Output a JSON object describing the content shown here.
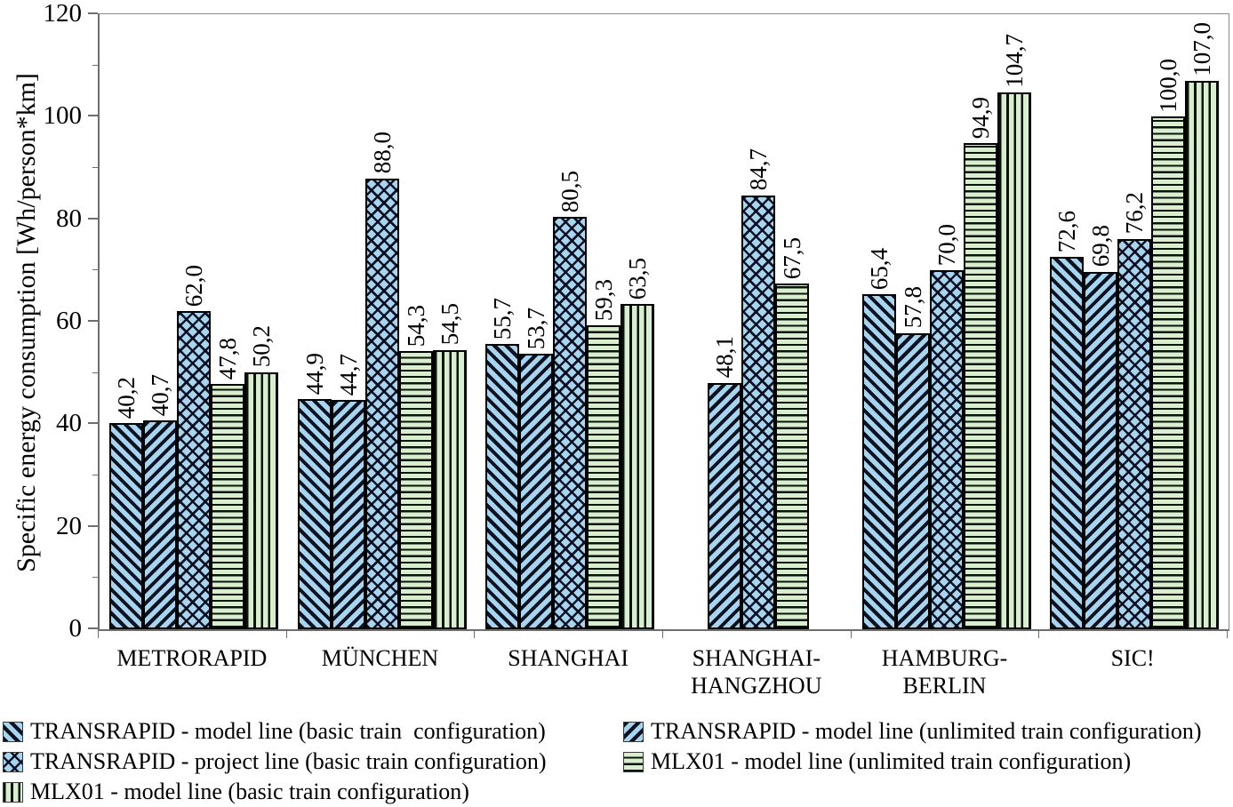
{
  "chart_data": {
    "type": "bar",
    "title": "",
    "xlabel": "",
    "ylabel": "Specific energy consumption [Wh/person*km]",
    "ylim": [
      0,
      120
    ],
    "y_major_ticks": [
      0,
      20,
      40,
      60,
      80,
      100,
      120
    ],
    "y_minor_step": 10,
    "grid": false,
    "legend_position": "bottom",
    "decimal_separator": ",",
    "categories": [
      "METRORAPID",
      "MÜNCHEN",
      "SHANGHAI",
      "SHANGHAI-HANGZHOU",
      "HAMBURG-BERLIN",
      "SIC!"
    ],
    "category_label_lines": [
      [
        "METRORAPID"
      ],
      [
        "MÜNCHEN"
      ],
      [
        "SHANGHAI"
      ],
      [
        "SHANGHAI-",
        "HANGZHOU"
      ],
      [
        "HAMBURG-",
        "BERLIN"
      ],
      [
        "SIC!"
      ]
    ],
    "series": [
      {
        "name": "TRANSRAPID - model line (basic train  configuration)",
        "pattern": "diagonal-down-hatch",
        "fill_color": "#a8d4f0",
        "hatch_color": "#000000",
        "values": [
          40.2,
          44.9,
          55.7,
          null,
          65.4,
          72.6
        ],
        "labels": [
          "40,2",
          "44,9",
          "55,7",
          null,
          "65,4",
          "72,6"
        ]
      },
      {
        "name": "TRANSRAPID - model line (unlimited train configuration)",
        "pattern": "diagonal-up-hatch",
        "fill_color": "#a8d4f0",
        "hatch_color": "#000000",
        "values": [
          40.7,
          44.7,
          53.7,
          48.1,
          57.8,
          69.8
        ],
        "labels": [
          "40,7",
          "44,7",
          "53,7",
          "48,1",
          "57,8",
          "69,8"
        ]
      },
      {
        "name": "TRANSRAPID - project line (basic train configuration)",
        "pattern": "crosshatch",
        "fill_color": "#a8d4f0",
        "hatch_color": "#000000",
        "values": [
          62.0,
          88.0,
          80.5,
          84.7,
          70.0,
          76.2
        ],
        "labels": [
          "62,0",
          "88,0",
          "80,5",
          "84,7",
          "70,0",
          "76,2"
        ]
      },
      {
        "name": "MLX01 - model line (unlimited train configuration)",
        "pattern": "horizontal-lines",
        "fill_color": "#d8eecf",
        "hatch_color": "#081408",
        "values": [
          47.8,
          54.3,
          59.3,
          67.5,
          94.9,
          100.0
        ],
        "labels": [
          "47,8",
          "54,3",
          "59,3",
          "67,5",
          "94,9",
          "100,0"
        ]
      },
      {
        "name": "MLX01 - model line (basic train configuration)",
        "pattern": "vertical-lines",
        "fill_color": "#d8eecf",
        "hatch_color": "#081408",
        "values": [
          50.2,
          54.5,
          63.5,
          null,
          104.7,
          107.0
        ],
        "labels": [
          "50,2",
          "54,5",
          "63,5",
          null,
          "104,7",
          "107,0"
        ]
      }
    ],
    "legend_columns": [
      [
        0,
        2,
        4
      ],
      [
        1,
        3
      ]
    ]
  }
}
